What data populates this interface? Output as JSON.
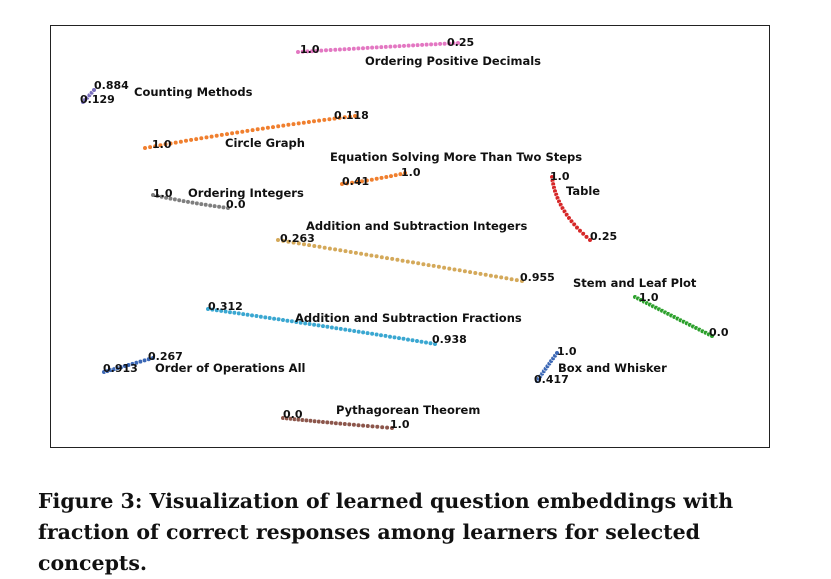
{
  "chart_data": {
    "type": "scatter",
    "title": "",
    "xlabel": "",
    "ylabel": "",
    "axes_ticks": "none",
    "grid": false,
    "legend": "none",
    "series": [
      {
        "name": "Ordering Positive Decimals",
        "color": "#e377c2",
        "start_label": "1.0",
        "end_label": "0.25"
      },
      {
        "name": "Counting Methods",
        "color": "#7a6fbe",
        "start_label": "0.129",
        "end_label": "0.884"
      },
      {
        "name": "Circle Graph",
        "color": "#f07f2e",
        "start_label": "1.0",
        "end_label": "0.118"
      },
      {
        "name": "Equation Solving More Than Two Steps",
        "color": "#f07f2e",
        "start_label": "0.41",
        "end_label": "1.0"
      },
      {
        "name": "Table",
        "color": "#d62728",
        "start_label": "1.0",
        "end_label": "0.25"
      },
      {
        "name": "Ordering Integers",
        "color": "#7f7f7f",
        "start_label": "1.0",
        "end_label": "0.0"
      },
      {
        "name": "Addition and Subtraction Integers",
        "color": "#d4a95a",
        "start_label": "0.263",
        "end_label": "0.955"
      },
      {
        "name": "Stem and Leaf Plot",
        "color": "#2ca02c",
        "start_label": "1.0",
        "end_label": "0.0"
      },
      {
        "name": "Addition and Subtraction Fractions",
        "color": "#3aa7d1",
        "start_label": "0.312",
        "end_label": "0.938"
      },
      {
        "name": "Order of Operations All",
        "color": "#3b67b5",
        "start_label": "0.913",
        "end_label": "0.267"
      },
      {
        "name": "Box and Whisker",
        "color": "#3b67b5",
        "start_label": "0.417",
        "end_label": "1.0"
      },
      {
        "name": "Pythagorean Theorem",
        "color": "#8c564b",
        "start_label": "0.0",
        "end_label": "1.0"
      }
    ]
  },
  "caption": "Figure 3: Visualization of learned question embeddings with fraction of correct responses among learners for selected concepts."
}
